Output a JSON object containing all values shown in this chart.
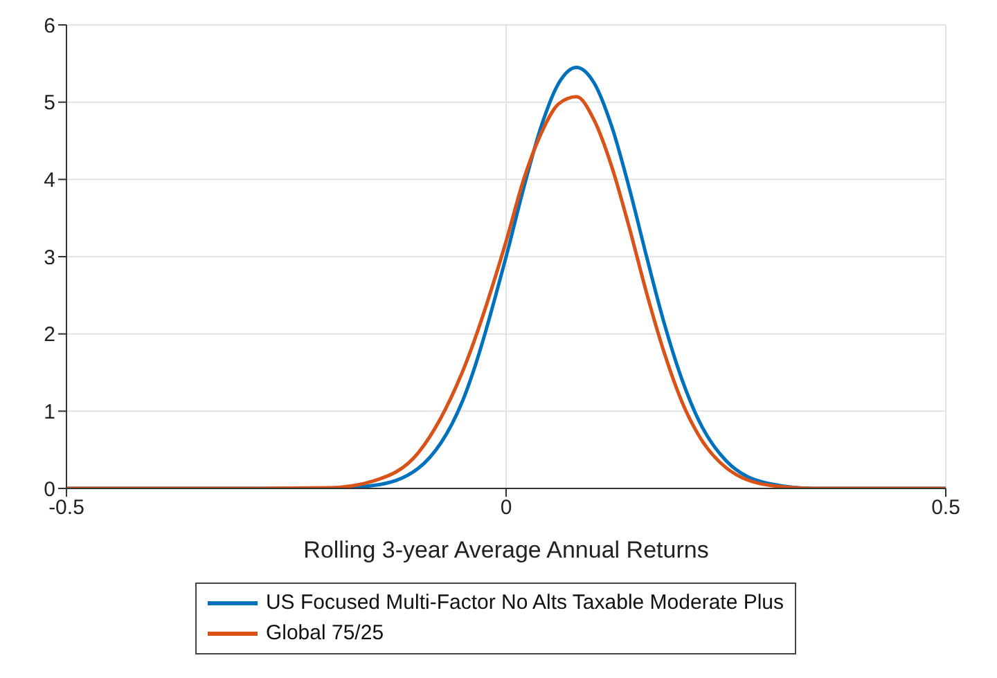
{
  "chart_data": {
    "type": "line",
    "xlabel": "Rolling 3-year Average Annual Returns",
    "x": [
      -0.5,
      -0.3,
      -0.2,
      -0.15,
      -0.1,
      -0.05,
      0,
      0.02,
      0.04,
      0.06,
      0.08,
      0.1,
      0.12,
      0.14,
      0.16,
      0.18,
      0.2,
      0.22,
      0.25,
      0.3,
      0.35,
      0.4,
      0.5
    ],
    "series": [
      {
        "name": "US Focused Multi-Factor No Alts Taxable Moderate Plus",
        "color": "#0072bd",
        "values": [
          0,
          0,
          0,
          0.04,
          0.26,
          1.12,
          3.0,
          3.89,
          4.69,
          5.25,
          5.45,
          5.25,
          4.69,
          3.89,
          2.99,
          2.13,
          1.41,
          0.86,
          0.36,
          0.06,
          0,
          0,
          0
        ]
      },
      {
        "name": "Global 75/25",
        "color": "#d95319",
        "values": [
          0,
          0,
          0.01,
          0.1,
          0.46,
          1.5,
          3.2,
          4.0,
          4.6,
          4.98,
          5.07,
          4.77,
          4.17,
          3.38,
          2.52,
          1.75,
          1.12,
          0.67,
          0.27,
          0.04,
          0,
          0,
          0
        ]
      }
    ],
    "xlim": [
      -0.5,
      0.5
    ],
    "xticks": [
      -0.5,
      0,
      0.5
    ],
    "ylim": [
      0,
      6
    ],
    "yticks": [
      0,
      1,
      2,
      3,
      4,
      5,
      6
    ],
    "grid": true,
    "legend": "bottom",
    "marker": "none",
    "line_style": "solid"
  }
}
